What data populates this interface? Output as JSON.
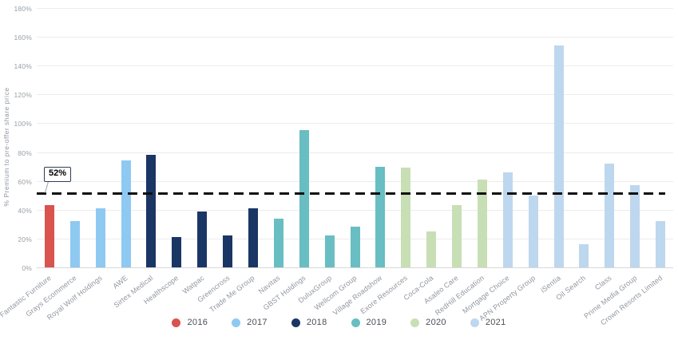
{
  "chart_data": {
    "type": "bar",
    "title": "",
    "xlabel": "",
    "ylabel": "% Premium to pre-offer share price",
    "ylim": [
      0,
      180
    ],
    "ytick_step": 20,
    "ytick_suffix": "%",
    "grid": "horizontal",
    "legend_position": "bottom",
    "reference_line": {
      "value": 52,
      "label": "52%",
      "style": "dashed",
      "color": "#0e0e0e"
    },
    "legend": [
      {
        "name": "2016",
        "color": "#d9534f"
      },
      {
        "name": "2017",
        "color": "#8ec9f2"
      },
      {
        "name": "2018",
        "color": "#1a3665"
      },
      {
        "name": "2019",
        "color": "#68bec2"
      },
      {
        "name": "2020",
        "color": "#c8dfb5"
      },
      {
        "name": "2021",
        "color": "#bdd7ee"
      }
    ],
    "bars": [
      {
        "company": "Fantastic Furniture",
        "year": "2016",
        "value": 43
      },
      {
        "company": "Grays Ecommerce",
        "year": "2017",
        "value": 32
      },
      {
        "company": "Royal Wolf Holdings",
        "year": "2017",
        "value": 41
      },
      {
        "company": "AWE",
        "year": "2017",
        "value": 74
      },
      {
        "company": "Sirtex Medical",
        "year": "2018",
        "value": 78
      },
      {
        "company": "Healthscope",
        "year": "2018",
        "value": 21
      },
      {
        "company": "Watpac",
        "year": "2018",
        "value": 39
      },
      {
        "company": "Greencross",
        "year": "2018",
        "value": 22
      },
      {
        "company": "Trade Me Group",
        "year": "2018",
        "value": 41
      },
      {
        "company": "Navitas",
        "year": "2019",
        "value": 34
      },
      {
        "company": "GBST Holdings",
        "year": "2019",
        "value": 95
      },
      {
        "company": "DuluxGroup",
        "year": "2019",
        "value": 22
      },
      {
        "company": "Wellcom Group",
        "year": "2019",
        "value": 28
      },
      {
        "company": "Village Roadshow",
        "year": "2019",
        "value": 70
      },
      {
        "company": "Exore Resources",
        "year": "2020",
        "value": 69
      },
      {
        "company": "Coca-Cola",
        "year": "2020",
        "value": 25
      },
      {
        "company": "Asaleo Care",
        "year": "2020",
        "value": 43
      },
      {
        "company": "RedHill Education",
        "year": "2020",
        "value": 61
      },
      {
        "company": "Mortgage Choice",
        "year": "2021",
        "value": 66
      },
      {
        "company": "APN Property Group",
        "year": "2021",
        "value": 50
      },
      {
        "company": "iSentia",
        "year": "2021",
        "value": 154
      },
      {
        "company": "Oil Search",
        "year": "2021",
        "value": 16
      },
      {
        "company": "Class",
        "year": "2021",
        "value": 72
      },
      {
        "company": "Prime Media Group",
        "year": "2021",
        "value": 57
      },
      {
        "company": "Crown Resorts Limited",
        "year": "2021",
        "value": 32
      }
    ]
  }
}
